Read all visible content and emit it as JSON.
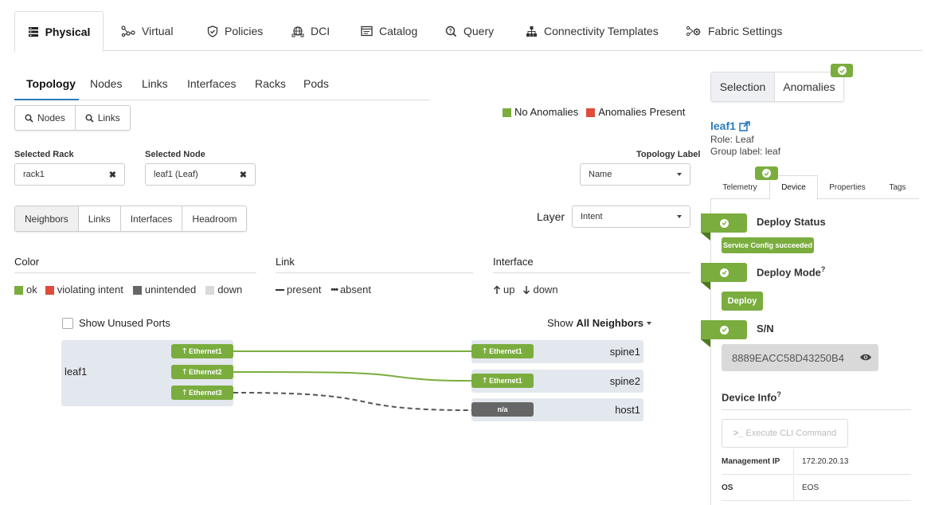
{
  "top_tabs": [
    {
      "label": "Physical",
      "icon": "server-stack-icon"
    },
    {
      "label": "Virtual",
      "icon": "network-nodes-icon"
    },
    {
      "label": "Policies",
      "icon": "shield-icon"
    },
    {
      "label": "DCI",
      "icon": "globe-icon"
    },
    {
      "label": "Catalog",
      "icon": "catalog-icon"
    },
    {
      "label": "Query",
      "icon": "query-icon"
    },
    {
      "label": "Connectivity Templates",
      "icon": "hierarchy-icon"
    },
    {
      "label": "Fabric Settings",
      "icon": "fabric-settings-icon"
    }
  ],
  "sub_tabs": [
    "Topology",
    "Nodes",
    "Links",
    "Interfaces",
    "Racks",
    "Pods"
  ],
  "search_buttons": {
    "nodes": "Nodes",
    "links": "Links"
  },
  "anomaly_legend": {
    "none": "No Anomalies",
    "present": "Anomalies Present"
  },
  "filters": {
    "selected_rack_label": "Selected Rack",
    "selected_rack_value": "rack1",
    "selected_node_label": "Selected Node",
    "selected_node_value": "leaf1 (Leaf)",
    "topology_label_label": "Topology Label",
    "topology_label_value": "Name"
  },
  "view_buttons": [
    "Neighbors",
    "Links",
    "Interfaces",
    "Headroom"
  ],
  "layer": {
    "label": "Layer",
    "value": "Intent"
  },
  "color_legend": {
    "title": "Color",
    "items": [
      {
        "label": "ok",
        "color": "#7aad3e"
      },
      {
        "label": "violating intent",
        "color": "#e04b3a"
      },
      {
        "label": "unintended",
        "color": "#666666"
      },
      {
        "label": "down",
        "color": "#d9d9d9"
      }
    ]
  },
  "link_legend": {
    "title": "Link",
    "present": "present",
    "absent": "absent"
  },
  "interface_legend": {
    "title": "Interface",
    "up": "up",
    "down": "down"
  },
  "show_unused_ports": "Show Unused Ports",
  "show_neighbors": {
    "prefix": "Show",
    "value": "All Neighbors"
  },
  "topology": {
    "local_node": "leaf1",
    "local_ports": [
      "Ethernet1",
      "Ethernet2",
      "Ethernet3"
    ],
    "neighbors": [
      {
        "name": "spine1",
        "port": "Ethernet1"
      },
      {
        "name": "spine2",
        "port": "Ethernet1"
      },
      {
        "name": "host1",
        "port": "n/a"
      }
    ]
  },
  "right_panel": {
    "tabs": {
      "selection": "Selection",
      "anomalies": "Anomalies"
    },
    "node_name": "leaf1",
    "role": "Role: Leaf",
    "group_label": "Group label: leaf",
    "detail_tabs": [
      "Telemetry",
      "Device",
      "Properties",
      "Tags"
    ],
    "deploy_status": {
      "title": "Deploy Status",
      "badge": "Service Config succeeded"
    },
    "deploy_mode": {
      "title": "Deploy Mode",
      "help": "?",
      "badge": "Deploy"
    },
    "serial": {
      "title": "S/N",
      "value": "8889EACC58D43250B4"
    },
    "device_info": {
      "title": "Device Info",
      "help": "?"
    },
    "execute_cli": "Execute CLI Command",
    "info_rows": [
      {
        "key": "Management IP",
        "value": "172.20.20.13"
      },
      {
        "key": "OS",
        "value": "EOS"
      }
    ]
  },
  "colors": {
    "ok": "#7aad3e",
    "anomaly": "#e04b3a",
    "link_accent": "#2b7bb9"
  }
}
